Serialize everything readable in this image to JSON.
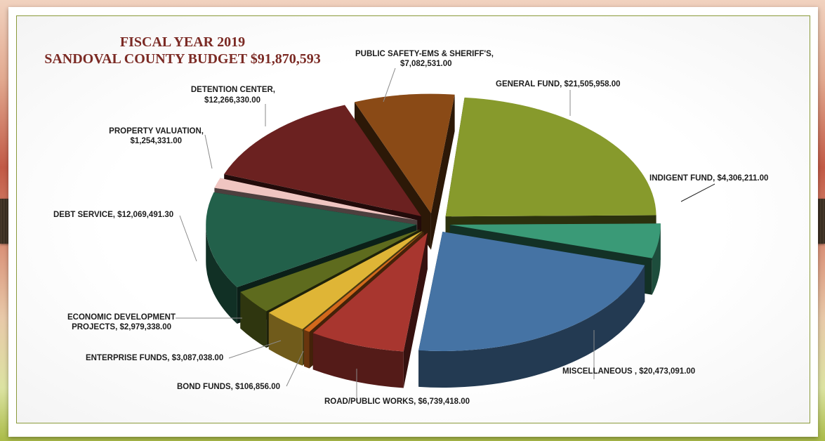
{
  "chart_data": {
    "type": "pie",
    "title_line1": "FISCAL YEAR 2019",
    "title_line2": "SANDOVAL COUNTY BUDGET $91,870,593",
    "slices": [
      {
        "name": "GENERAL FUND",
        "value": 21505958.0,
        "label": "GENERAL FUND, $21,505,958.00",
        "color": "#879a2c"
      },
      {
        "name": "INDIGENT FUND",
        "value": 4306211.0,
        "label": "INDIGENT FUND, $4,306,211.00",
        "color": "#3a9a77"
      },
      {
        "name": "MISCELLANEOUS",
        "value": 20473091.0,
        "label": "MISCELLANEOUS , $20,473,091.00",
        "color": "#4573a4"
      },
      {
        "name": "ROAD/PUBLIC WORKS",
        "value": 6739418.0,
        "label": "ROAD/PUBLIC WORKS, $6,739,418.00",
        "color": "#a8362f"
      },
      {
        "name": "BOND FUNDS",
        "value": 106856.0,
        "label": "BOND FUNDS, $106,856.00",
        "color": "#d2691c"
      },
      {
        "name": "ENTERPRISE FUNDS",
        "value": 3087038.0,
        "label": "ENTERPRISE FUNDS, $3,087,038.00",
        "color": "#dfb536"
      },
      {
        "name": "ECONOMIC DEVELOPMENT PROJECTS",
        "value": 2979338.0,
        "label1": "ECONOMIC DEVELOPMENT",
        "label2": "PROJECTS, $2,979,338.00",
        "color": "#5e6b1e"
      },
      {
        "name": "DEBT SERVICE",
        "value": 12069491.3,
        "label": "DEBT SERVICE, $12,069,491.30",
        "color": "#22604a"
      },
      {
        "name": "PROPERTY VALUATION",
        "value": 1254331.0,
        "label1": "PROPERTY VALUATION,",
        "label2": "$1,254,331.00",
        "color": "#f0c5c1"
      },
      {
        "name": "DETENTION CENTER",
        "value": 12266330.0,
        "label1": "DETENTION CENTER,",
        "label2": "$12,266,330.00",
        "color": "#6b2120"
      },
      {
        "name": "PUBLIC SAFETY-EMS & SHERIFF'S",
        "value": 7082531.0,
        "label1": "PUBLIC SAFETY-EMS & SHERIFF'S,",
        "label2": "$7,082,531.00",
        "color": "#8a4a16"
      }
    ]
  }
}
